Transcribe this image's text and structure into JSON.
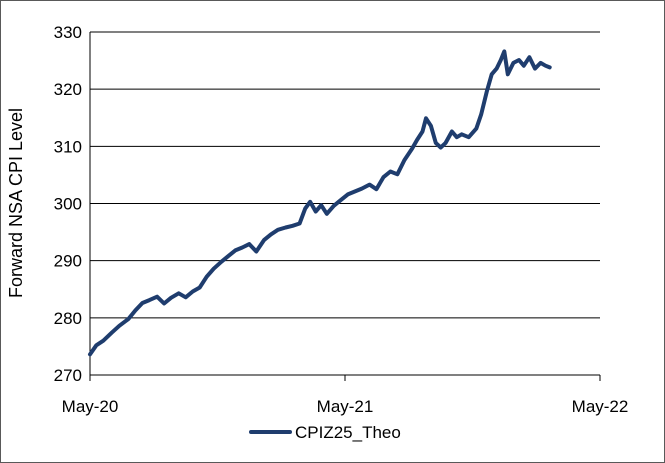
{
  "chart_data": {
    "type": "line",
    "ylabel": "Forward NSA CPI Level",
    "xlabel": "",
    "ylim": [
      270,
      330
    ],
    "yticks": [
      270,
      280,
      290,
      300,
      310,
      320,
      330
    ],
    "xlim": [
      "2020-05",
      "2022-05"
    ],
    "xticks": [
      "May-20",
      "May-21",
      "May-22"
    ],
    "grid": "horizontal",
    "legend": "bottom",
    "series": [
      {
        "name": "CPIZ25_Theo",
        "color": "#1f3d6e",
        "points": [
          [
            "2020-05-01",
            273.6
          ],
          [
            "2020-05-10",
            275.2
          ],
          [
            "2020-05-20",
            276.0
          ],
          [
            "2020-06-01",
            277.4
          ],
          [
            "2020-06-12",
            278.6
          ],
          [
            "2020-06-25",
            279.8
          ],
          [
            "2020-07-05",
            281.3
          ],
          [
            "2020-07-15",
            282.6
          ],
          [
            "2020-07-25",
            283.1
          ],
          [
            "2020-08-05",
            283.7
          ],
          [
            "2020-08-15",
            282.5
          ],
          [
            "2020-08-25",
            283.5
          ],
          [
            "2020-09-05",
            284.3
          ],
          [
            "2020-09-15",
            283.6
          ],
          [
            "2020-09-25",
            284.6
          ],
          [
            "2020-10-05",
            285.3
          ],
          [
            "2020-10-15",
            287.2
          ],
          [
            "2020-10-25",
            288.6
          ],
          [
            "2020-11-05",
            289.8
          ],
          [
            "2020-11-15",
            290.8
          ],
          [
            "2020-11-25",
            291.8
          ],
          [
            "2020-12-05",
            292.3
          ],
          [
            "2020-12-15",
            292.9
          ],
          [
            "2020-12-25",
            291.6
          ],
          [
            "2021-01-05",
            293.6
          ],
          [
            "2021-01-15",
            294.6
          ],
          [
            "2021-01-25",
            295.4
          ],
          [
            "2021-02-05",
            295.8
          ],
          [
            "2021-02-15",
            296.1
          ],
          [
            "2021-02-25",
            296.5
          ],
          [
            "2021-03-05",
            299.1
          ],
          [
            "2021-03-12",
            300.3
          ],
          [
            "2021-03-20",
            298.6
          ],
          [
            "2021-03-28",
            299.7
          ],
          [
            "2021-04-05",
            298.2
          ],
          [
            "2021-04-15",
            299.6
          ],
          [
            "2021-04-25",
            300.6
          ],
          [
            "2021-05-05",
            301.6
          ],
          [
            "2021-05-15",
            302.1
          ],
          [
            "2021-05-25",
            302.6
          ],
          [
            "2021-06-05",
            303.3
          ],
          [
            "2021-06-15",
            302.5
          ],
          [
            "2021-06-25",
            304.6
          ],
          [
            "2021-07-05",
            305.6
          ],
          [
            "2021-07-15",
            305.1
          ],
          [
            "2021-07-25",
            307.6
          ],
          [
            "2021-08-05",
            309.6
          ],
          [
            "2021-08-12",
            311.1
          ],
          [
            "2021-08-20",
            312.6
          ],
          [
            "2021-08-25",
            314.9
          ],
          [
            "2021-09-01",
            313.6
          ],
          [
            "2021-09-08",
            310.6
          ],
          [
            "2021-09-15",
            309.8
          ],
          [
            "2021-09-22",
            310.6
          ],
          [
            "2021-10-01",
            312.6
          ],
          [
            "2021-10-08",
            311.6
          ],
          [
            "2021-10-15",
            312.1
          ],
          [
            "2021-10-25",
            311.6
          ],
          [
            "2021-11-05",
            313.1
          ],
          [
            "2021-11-12",
            315.6
          ],
          [
            "2021-11-20",
            319.6
          ],
          [
            "2021-11-27",
            322.6
          ],
          [
            "2021-12-04",
            323.6
          ],
          [
            "2021-12-10",
            325.1
          ],
          [
            "2021-12-15",
            326.6
          ],
          [
            "2021-12-20",
            322.6
          ],
          [
            "2021-12-28",
            324.6
          ],
          [
            "2022-01-05",
            325.1
          ],
          [
            "2022-01-12",
            324.1
          ],
          [
            "2022-01-20",
            325.6
          ],
          [
            "2022-01-28",
            323.6
          ],
          [
            "2022-02-05",
            324.6
          ],
          [
            "2022-02-12",
            324.1
          ],
          [
            "2022-02-18",
            323.8
          ]
        ]
      }
    ]
  }
}
